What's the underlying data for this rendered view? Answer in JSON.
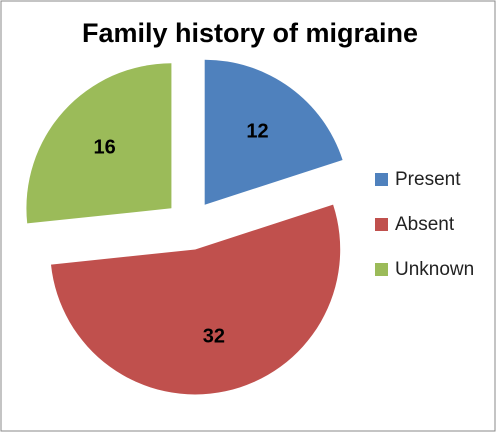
{
  "chart_data": {
    "type": "pie",
    "title": "Family history of migraine",
    "categories": [
      "Present",
      "Absent",
      "Unknown"
    ],
    "values": [
      12,
      32,
      16
    ],
    "colors": [
      "#4f81bd",
      "#c0504d",
      "#9bbb59"
    ],
    "legend": "right"
  }
}
